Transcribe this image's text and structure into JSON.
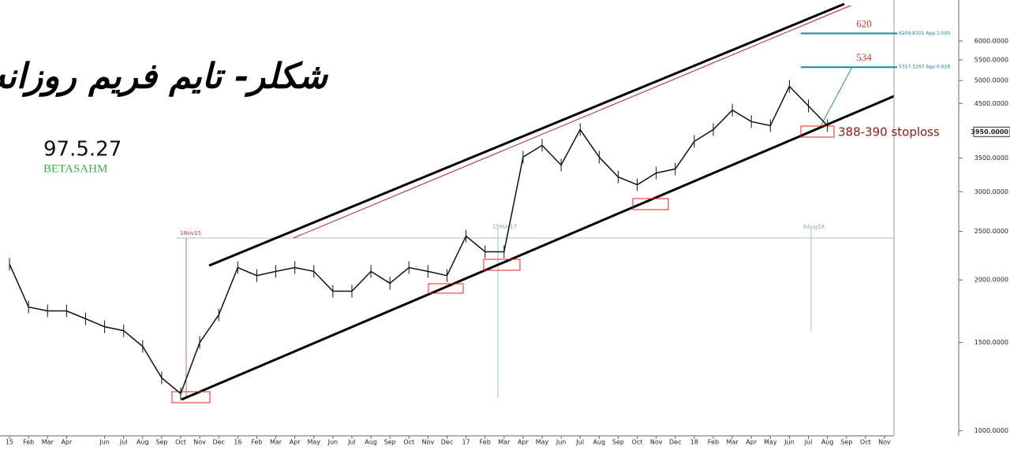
{
  "chart_data": {
    "type": "line",
    "title": "شکلر- تایم فریم روزانه",
    "date_label": "97.5.27",
    "brand": "BETASAHM",
    "log_scale": true,
    "color": "#111111",
    "categories": [
      "15",
      "Feb",
      "Mar",
      "Apr",
      null,
      "Jun",
      "Jul",
      "Aug",
      "Sep",
      "Oct",
      "Nov",
      "Dec",
      "16",
      "Feb",
      "Mar",
      "Apr",
      "May",
      "Jun",
      "Jul",
      "Aug",
      "Sep",
      "Oct",
      "Nov",
      "Dec",
      "17",
      "Feb",
      "Mar",
      "Apr",
      "May",
      "Jun",
      "Jul",
      "Aug",
      "Sep",
      "Oct",
      "Nov",
      "Dec",
      "18",
      "Feb",
      "Mar",
      "Apr",
      "May",
      "Jun",
      "Jul",
      "Aug",
      "Sep",
      "Oct",
      "Nov"
    ],
    "values": [
      2150,
      1766,
      1735,
      1735,
      1673,
      1613,
      1584,
      1474,
      1275,
      1186,
      1500,
      1703,
      2117,
      2040,
      2080,
      2117,
      2080,
      1899,
      1899,
      2080,
      1970,
      2117,
      2080,
      2040,
      2446,
      2276,
      2276,
      3516,
      3713,
      3390,
      3991,
      3516,
      3210,
      3098,
      3270,
      3330,
      3780,
      3991,
      4365,
      4140,
      4065,
      4870,
      4450,
      4065,
      null,
      null,
      null
    ],
    "ylim": [
      970,
      7240
    ],
    "yticks": [
      {
        "value": 1000,
        "label": "1000.0000"
      },
      {
        "value": 1500,
        "label": "1500.0000"
      },
      {
        "value": 2000,
        "label": "2000.0000"
      },
      {
        "value": 2500,
        "label": "2500.0000"
      },
      {
        "value": 3000,
        "label": "3000.0000"
      },
      {
        "value": 3500,
        "label": "3500.0000"
      },
      {
        "value": 4500,
        "label": "4500.0000"
      },
      {
        "value": 5000,
        "label": "5000.0000"
      },
      {
        "value": 5500,
        "label": "5500.0000"
      },
      {
        "value": 6000,
        "label": "6000.0000"
      }
    ],
    "last_price": {
      "value": 3950,
      "label": "3950.0000"
    },
    "fib_levels": [
      {
        "value": 6209.8101,
        "label": "6209.8101 App 1.000",
        "target": "620"
      },
      {
        "value": 5317.3267,
        "label": "5317.3267 App 0.618",
        "target": "534"
      }
    ],
    "stoploss_label": "388-390 stoploss",
    "markers": [
      "1Nov15",
      "15Mar17",
      "6Aug18"
    ]
  }
}
